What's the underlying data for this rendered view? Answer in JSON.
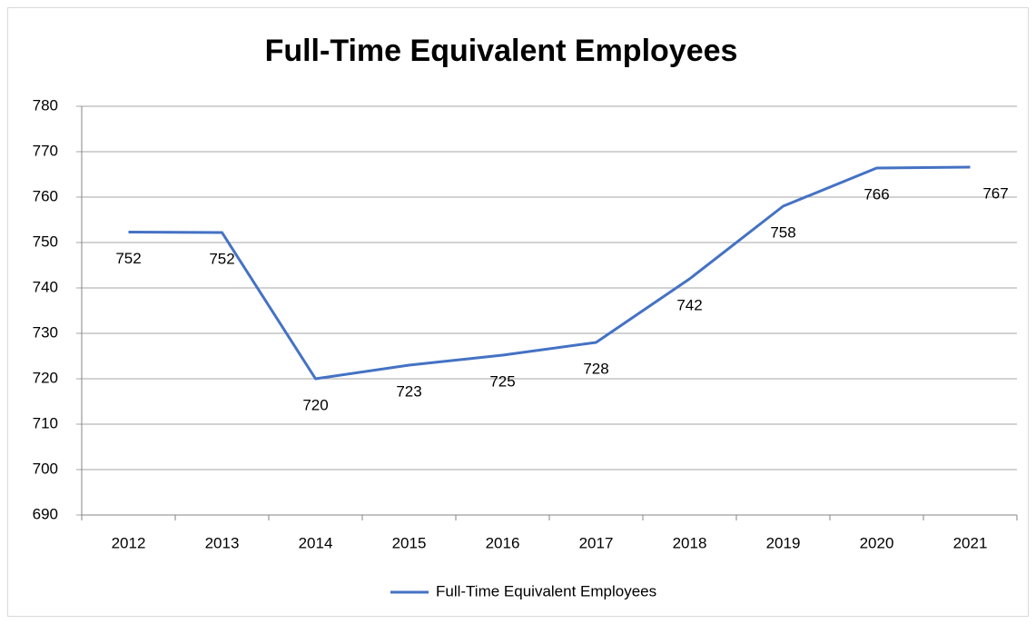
{
  "chart_data": {
    "type": "line",
    "title": "Full-Time Equivalent Employees",
    "categories": [
      "2012",
      "2013",
      "2014",
      "2015",
      "2016",
      "2017",
      "2018",
      "2019",
      "2020",
      "2021"
    ],
    "series": [
      {
        "name": "Full-Time Equivalent Employees",
        "color": "#4472c4",
        "values": [
          752.3,
          752.2,
          720,
          723,
          725.2,
          728,
          742,
          758,
          766.4,
          766.6
        ],
        "value_labels": [
          "752",
          "752",
          "720",
          "723",
          "725",
          "728",
          "742",
          "758",
          "766",
          "767"
        ]
      }
    ],
    "ylim": [
      690,
      780
    ],
    "yticks": [
      690,
      700,
      710,
      720,
      730,
      740,
      750,
      760,
      770,
      780
    ],
    "grid": true,
    "legend": "bottom"
  }
}
